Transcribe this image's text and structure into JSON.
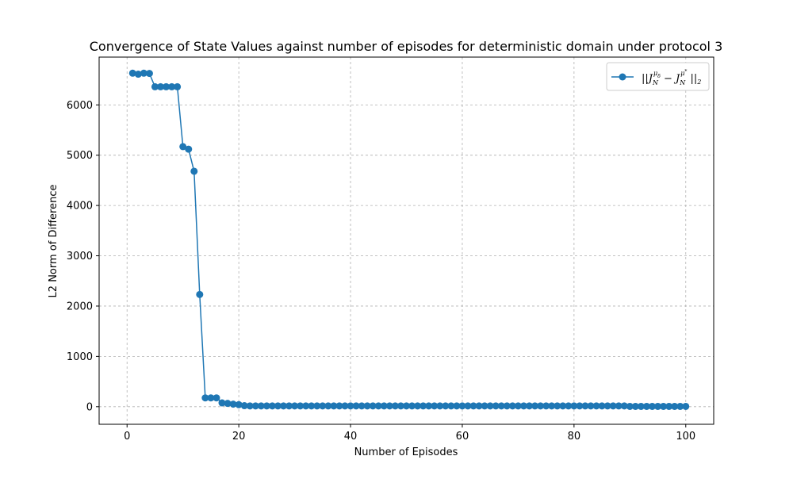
{
  "chart_data": {
    "type": "line",
    "title": "Convergence of State Values against number of episodes for deterministic domain under protocol 3",
    "xlabel": "Number of Episodes",
    "ylabel": "L2 Norm of Difference",
    "xlim": [
      -5,
      105
    ],
    "ylim": [
      -350,
      6950
    ],
    "xticks": [
      0,
      20,
      40,
      60,
      80,
      100
    ],
    "yticks": [
      0,
      1000,
      2000,
      3000,
      4000,
      5000,
      6000
    ],
    "xtick_labels": [
      "0",
      "20",
      "40",
      "60",
      "80",
      "100"
    ],
    "ytick_labels": [
      "0",
      "1000",
      "2000",
      "3000",
      "4000",
      "5000",
      "6000"
    ],
    "grid": true,
    "grid_style": "dashed",
    "legend_position": "top-right",
    "series": [
      {
        "name": "||J_N^{μ_δ} − J_N^{μ*}||_2",
        "color": "#1f77b4",
        "marker": "circle",
        "x": [
          1,
          2,
          3,
          4,
          5,
          6,
          7,
          8,
          9,
          10,
          11,
          12,
          13,
          14,
          15,
          16,
          17,
          18,
          19,
          20,
          21,
          22,
          23,
          24,
          25,
          26,
          27,
          28,
          29,
          30,
          31,
          32,
          33,
          34,
          35,
          36,
          37,
          38,
          39,
          40,
          41,
          42,
          43,
          44,
          45,
          46,
          47,
          48,
          49,
          50,
          51,
          52,
          53,
          54,
          55,
          56,
          57,
          58,
          59,
          60,
          61,
          62,
          63,
          64,
          65,
          66,
          67,
          68,
          69,
          70,
          71,
          72,
          73,
          74,
          75,
          76,
          77,
          78,
          79,
          80,
          81,
          82,
          83,
          84,
          85,
          86,
          87,
          88,
          89,
          90,
          91,
          92,
          93,
          94,
          95,
          96,
          97,
          98,
          99,
          100
        ],
        "values": [
          6630,
          6610,
          6630,
          6625,
          6360,
          6360,
          6360,
          6360,
          6360,
          5170,
          5120,
          4680,
          2230,
          175,
          175,
          175,
          75,
          65,
          50,
          40,
          20,
          15,
          15,
          15,
          15,
          15,
          15,
          15,
          15,
          15,
          15,
          15,
          15,
          15,
          15,
          15,
          15,
          15,
          15,
          15,
          15,
          15,
          15,
          15,
          15,
          15,
          15,
          15,
          15,
          15,
          15,
          15,
          15,
          15,
          15,
          15,
          15,
          15,
          15,
          15,
          15,
          15,
          15,
          15,
          15,
          15,
          15,
          15,
          15,
          15,
          15,
          15,
          15,
          15,
          15,
          15,
          15,
          15,
          15,
          15,
          15,
          15,
          15,
          15,
          15,
          15,
          15,
          15,
          15,
          5,
          5,
          5,
          5,
          5,
          5,
          5,
          5,
          5,
          5,
          5
        ]
      }
    ]
  },
  "legend": {
    "entries": [
      {
        "base": "||J",
        "sub1": "N",
        "sup1": "μ",
        "supsub1": "δ",
        "minus": " − J",
        "sub2": "N",
        "sup2": "μ",
        "supsup2": "*",
        "tail": " ||",
        "tailsub": "2"
      }
    ]
  }
}
